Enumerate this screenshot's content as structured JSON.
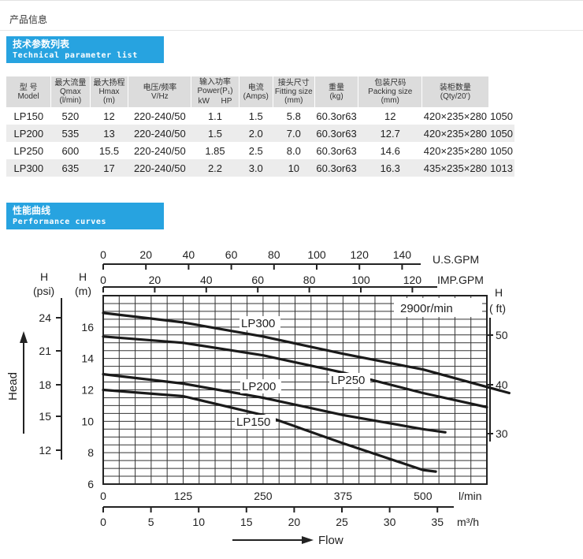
{
  "page": {
    "title": "产品信息"
  },
  "section_specs": {
    "title_cn": "技术参数列表",
    "title_en": "Technical parameter list"
  },
  "section_curves": {
    "title_cn": "性能曲线",
    "title_en": "Performance curves"
  },
  "table": {
    "headers": {
      "model": {
        "cn": "型 号",
        "en": "Model"
      },
      "qmax": {
        "cn": "最大流量",
        "en1": "Qmax",
        "en2": "(l/min)"
      },
      "hmax": {
        "cn": "最大扬程",
        "en1": "Hmax",
        "en2": "(m)"
      },
      "voltage": {
        "cn": "电压/频率",
        "en": "V/Hz"
      },
      "power": {
        "cn": "输入功率",
        "en": "Power(P₁)",
        "kw": "kW",
        "hp": "HP"
      },
      "current": {
        "cn": "电流",
        "en": "(Amps)"
      },
      "fitting": {
        "cn": "接头尺寸",
        "en1": "Fitting size",
        "en2": "(mm)"
      },
      "weight": {
        "cn": "重量",
        "en": "(kg)"
      },
      "packing": {
        "cn": "包装尺码",
        "en1": "Packing size",
        "en2": "(mm)"
      },
      "qty": {
        "cn": "装柜数量",
        "en": "(Qty/20’)"
      }
    },
    "rows": [
      {
        "model": "LP150",
        "qmax": "520",
        "hmax": "12",
        "voltage": "220-240/50",
        "kw": "1.1",
        "hp": "1.5",
        "amps": "5.8",
        "fitting": "60.3or63",
        "weight": "12",
        "packing": "420×235×280",
        "qty": "1050"
      },
      {
        "model": "LP200",
        "qmax": "535",
        "hmax": "13",
        "voltage": "220-240/50",
        "kw": "1.5",
        "hp": "2.0",
        "amps": "7.0",
        "fitting": "60.3or63",
        "weight": "12.7",
        "packing": "420×235×280",
        "qty": "1050"
      },
      {
        "model": "LP250",
        "qmax": "600",
        "hmax": "15.5",
        "voltage": "220-240/50",
        "kw": "1.85",
        "hp": "2.5",
        "amps": "8.0",
        "fitting": "60.3or63",
        "weight": "14.6",
        "packing": "420×235×280",
        "qty": "1050"
      },
      {
        "model": "LP300",
        "qmax": "635",
        "hmax": "17",
        "voltage": "220-240/50",
        "kw": "2.2",
        "hp": "3.0",
        "amps": "10",
        "fitting": "60.3or63",
        "weight": "16.3",
        "packing": "435×235×280",
        "qty": "1013"
      }
    ]
  },
  "chart_data": {
    "type": "line",
    "xlabel": "Flow",
    "ylabel": "Head",
    "speed_note": "2900r/min",
    "x_unit": "l/min",
    "xlim": [
      0,
      600
    ],
    "ylim": [
      6,
      18
    ],
    "x_ticks": [
      0,
      125,
      250,
      375,
      500
    ],
    "y_ticks": [
      6,
      8,
      10,
      12,
      14,
      16
    ],
    "y_unit_m": "H (m)",
    "axis_psi": {
      "label_h": "H",
      "label_unit": "(psi)",
      "ticks": [
        "24",
        "21",
        "18",
        "15",
        "12"
      ]
    },
    "axis_ft": {
      "label_h": "H",
      "label_unit": "( ft)",
      "ticks": [
        "50",
        "40",
        "30"
      ]
    },
    "axis_usgpm": {
      "label": "U.S.GPM",
      "ticks": [
        "0",
        "20",
        "40",
        "60",
        "80",
        "100",
        "120",
        "140"
      ]
    },
    "axis_impgpm": {
      "label": "IMP.GPM",
      "ticks": [
        "0",
        "20",
        "40",
        "60",
        "80",
        "100",
        "120"
      ]
    },
    "axis_m3h": {
      "label": "m³/h",
      "ticks": [
        "0",
        "5",
        "10",
        "15",
        "20",
        "25",
        "30",
        "35"
      ]
    },
    "series": [
      {
        "name": "LP300",
        "x": [
          0,
          125,
          250,
          375,
          500,
          635
        ],
        "y": [
          16.9,
          16.3,
          15.4,
          14.3,
          13.3,
          11.8
        ]
      },
      {
        "name": "LP250",
        "x": [
          0,
          125,
          250,
          375,
          500,
          600
        ],
        "y": [
          15.4,
          15.0,
          14.2,
          13.1,
          11.8,
          10.9
        ]
      },
      {
        "name": "LP200",
        "x": [
          0,
          125,
          250,
          375,
          500,
          535
        ],
        "y": [
          13.0,
          12.4,
          11.5,
          10.4,
          9.5,
          9.3
        ]
      },
      {
        "name": "LP150",
        "x": [
          0,
          125,
          250,
          375,
          500,
          520
        ],
        "y": [
          12.0,
          11.6,
          10.4,
          8.6,
          6.9,
          6.8
        ]
      }
    ]
  }
}
